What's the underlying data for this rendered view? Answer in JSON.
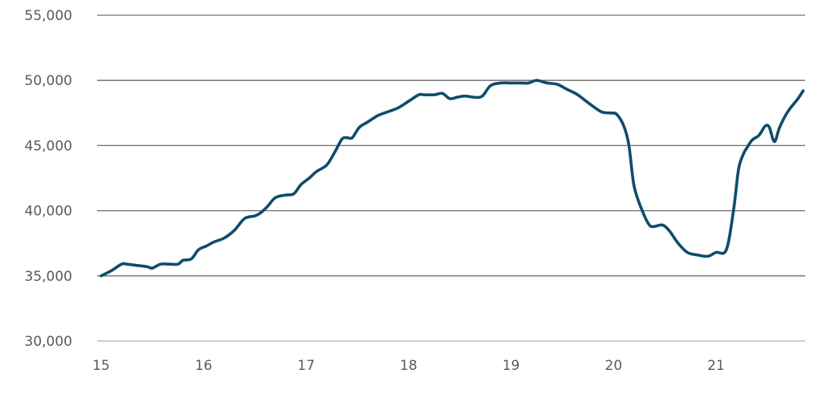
{
  "chart_data": {
    "type": "line",
    "title": "",
    "xlabel": "",
    "ylabel": "",
    "xlim": [
      15,
      21.85
    ],
    "ylim": [
      30000,
      55000
    ],
    "x_ticks": [
      15,
      16,
      17,
      18,
      19,
      20,
      21
    ],
    "x_tick_labels": [
      "15",
      "16",
      "17",
      "18",
      "19",
      "20",
      "21"
    ],
    "y_ticks": [
      30000,
      35000,
      40000,
      45000,
      50000,
      55000
    ],
    "y_tick_labels": [
      "30,000",
      "35,000",
      "40,000",
      "45,000",
      "50,000",
      "55,000"
    ],
    "grid": "horizontal",
    "legend": "none",
    "colors": {
      "line": "#0f4c6b",
      "grid": "#6e6e6e",
      "baseline": "#a8c4d8",
      "tick_text": "#5a5a5a"
    },
    "series": [
      {
        "x": [
          15.0,
          15.1,
          15.2,
          15.25,
          15.35,
          15.45,
          15.5,
          15.58,
          15.67,
          15.75,
          15.8,
          15.88,
          15.95,
          16.03,
          16.1,
          16.2,
          16.3,
          16.4,
          16.5,
          16.55,
          16.62,
          16.7,
          16.8,
          16.88,
          16.95,
          17.03,
          17.1,
          17.2,
          17.28,
          17.35,
          17.4,
          17.45,
          17.52,
          17.6,
          17.7,
          17.8,
          17.9,
          18.0,
          18.1,
          18.15,
          18.25,
          18.33,
          18.4,
          18.47,
          18.55,
          18.65,
          18.72,
          18.8,
          18.9,
          19.0,
          19.1,
          19.17,
          19.25,
          19.35,
          19.45,
          19.55,
          19.65,
          19.75,
          19.88,
          19.97,
          20.03,
          20.1,
          20.15,
          20.2,
          20.28,
          20.35,
          20.4,
          20.48,
          20.55,
          20.63,
          20.72,
          20.82,
          20.92,
          21.0,
          21.1,
          21.17,
          21.22,
          21.27,
          21.3,
          21.35,
          21.42,
          21.48,
          21.52,
          21.57,
          21.62,
          21.7,
          21.8,
          21.85
        ],
        "y": [
          35000,
          35400,
          35900,
          35900,
          35800,
          35700,
          35600,
          35900,
          35900,
          35900,
          36200,
          36300,
          37000,
          37300,
          37600,
          37900,
          38500,
          39400,
          39600,
          39800,
          40300,
          41000,
          41200,
          41300,
          42000,
          42500,
          43000,
          43500,
          44500,
          45500,
          45600,
          45600,
          46400,
          46800,
          47300,
          47600,
          47900,
          48400,
          48900,
          48900,
          48900,
          49000,
          48600,
          48700,
          48800,
          48700,
          48800,
          49600,
          49800,
          49800,
          49800,
          49800,
          50000,
          49800,
          49700,
          49300,
          48900,
          48300,
          47600,
          47500,
          47400,
          46500,
          45000,
          41900,
          40000,
          38900,
          38800,
          38900,
          38400,
          37500,
          36800,
          36600,
          36500,
          36800,
          37000,
          40000,
          43200,
          44400,
          44800,
          45400,
          45800,
          46500,
          46400,
          45300,
          46400,
          47600,
          48600,
          49200
        ]
      }
    ]
  }
}
